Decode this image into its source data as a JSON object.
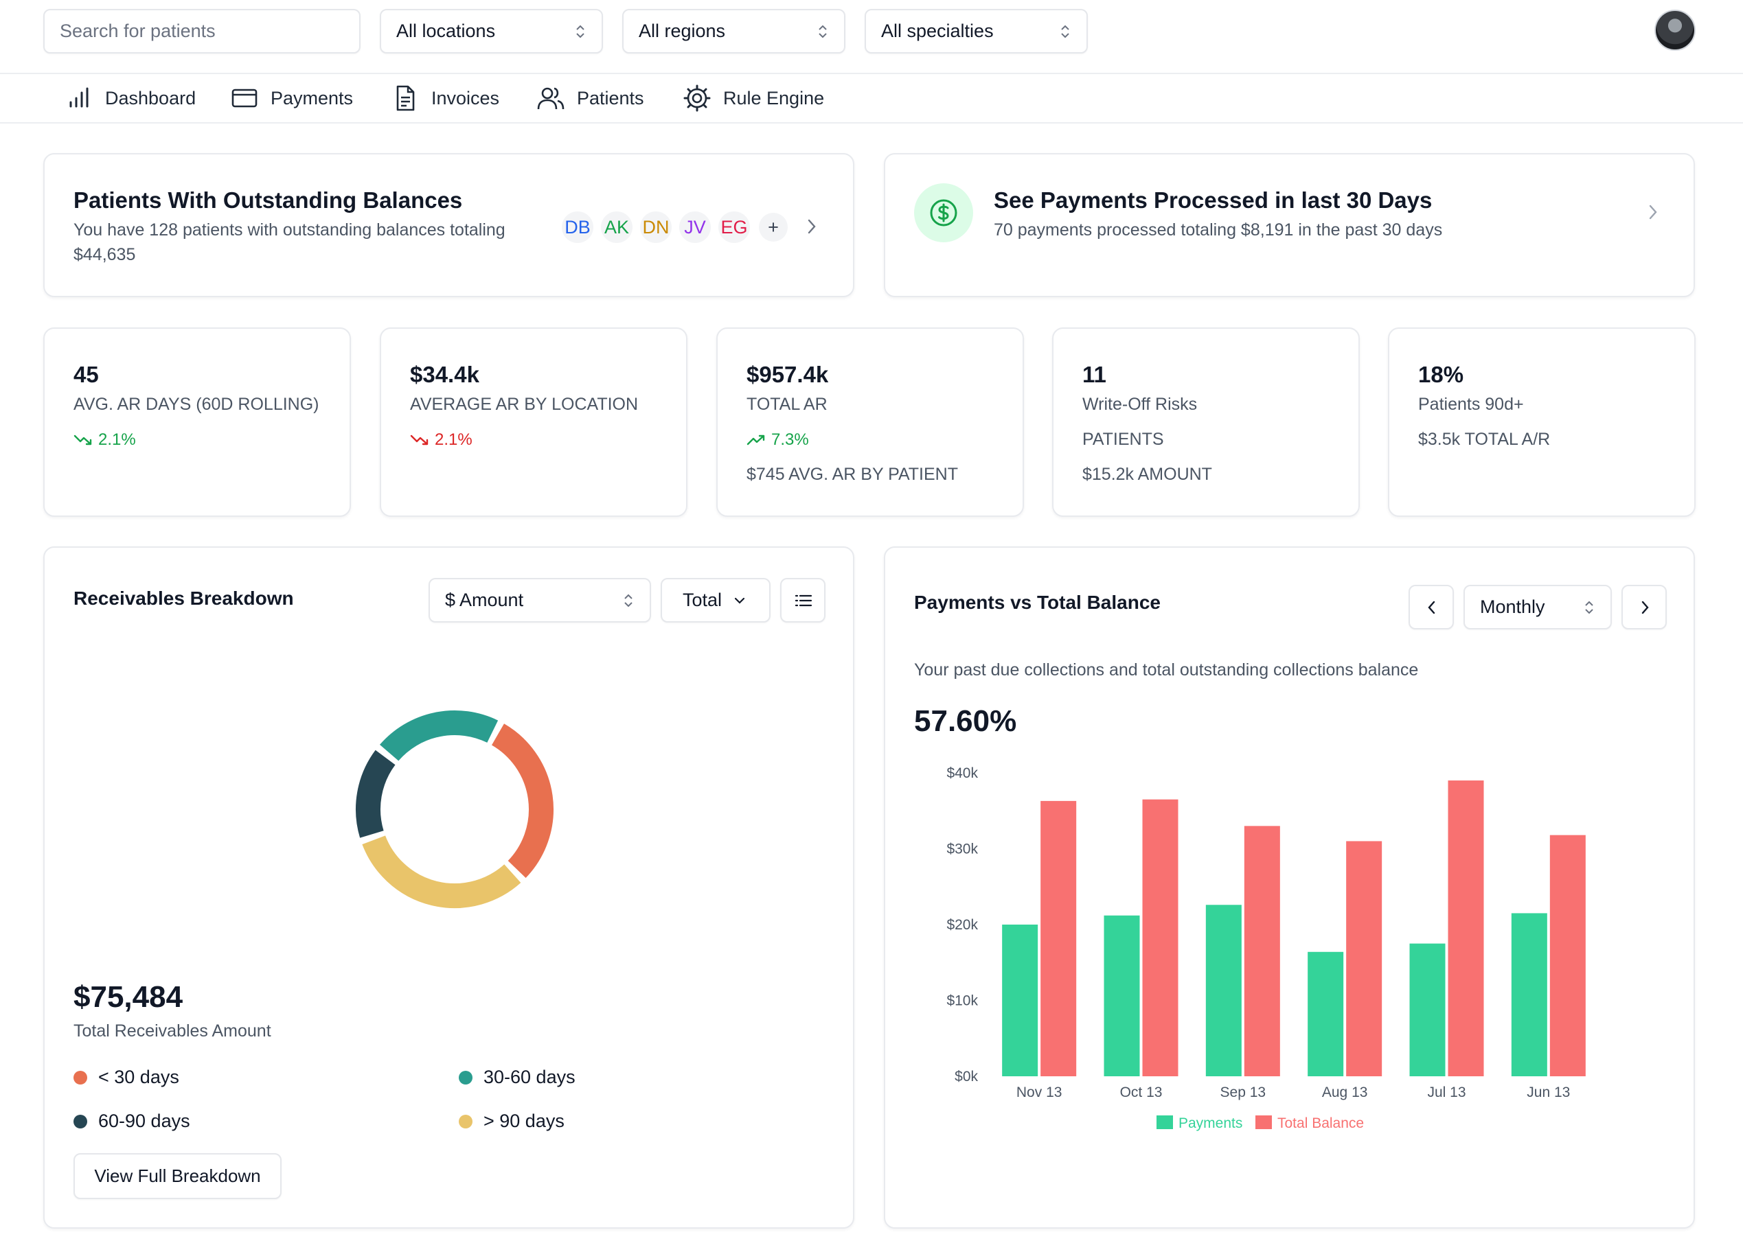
{
  "topbar": {
    "search_placeholder": "Search for patients",
    "locations": "All locations",
    "regions": "All regions",
    "specialties": "All specialties"
  },
  "nav": {
    "dashboard": "Dashboard",
    "payments": "Payments",
    "invoices": "Invoices",
    "patients": "Patients",
    "rule_engine": "Rule Engine"
  },
  "outstanding": {
    "title": "Patients With Outstanding Balances",
    "desc_line1": "You have 128 patients with outstanding balances totaling",
    "desc_line2": "$44,635",
    "chips": [
      {
        "initials": "DB",
        "color": "#2563eb"
      },
      {
        "initials": "AK",
        "color": "#16a34a"
      },
      {
        "initials": "DN",
        "color": "#ca8a04"
      },
      {
        "initials": "JV",
        "color": "#9333ea"
      },
      {
        "initials": "EG",
        "color": "#e11d48"
      }
    ],
    "more": "+"
  },
  "processed": {
    "title": "See Payments Processed in last 30 Days",
    "desc": "70 payments processed totaling $8,191 in the past 30 days"
  },
  "stats": [
    {
      "value": "45",
      "label": "AVG. AR DAYS (60D ROLLING)",
      "trend": "2.1%",
      "trend_dir": "down",
      "trend_color": "#16a34a"
    },
    {
      "value": "$34.4k",
      "label": "AVERAGE AR BY LOCATION",
      "trend": "2.1%",
      "trend_dir": "down",
      "trend_color": "#dc2626"
    },
    {
      "value": "$957.4k",
      "label": "TOTAL AR",
      "trend": "7.3%",
      "trend_dir": "up",
      "trend_color": "#16a34a",
      "extra": "$745 AVG. AR BY PATIENT"
    },
    {
      "value": "11",
      "label": "Write-Off Risks",
      "line2": "PATIENTS",
      "line3": "$15.2k AMOUNT"
    },
    {
      "value": "18%",
      "label": "Patients 90d+",
      "line2": "$3.5k TOTAL A/R"
    }
  ],
  "receivables": {
    "title": "Receivables Breakdown",
    "amount_select": "$ Amount",
    "total_select": "Total",
    "total_value": "$75,484",
    "total_label": "Total Receivables Amount",
    "legend": [
      {
        "label": "< 30 days",
        "color": "#e8704f"
      },
      {
        "label": "30-60 days",
        "color": "#2a9d8f"
      },
      {
        "label": "60-90 days",
        "color": "#264653"
      },
      {
        "label": "> 90 days",
        "color": "#e9c46a"
      }
    ],
    "donut": [
      {
        "label": "< 30 days",
        "value": 30,
        "color": "#e8704f"
      },
      {
        "label": "> 90 days",
        "value": 32,
        "color": "#e9c46a"
      },
      {
        "label": "60-90 days",
        "value": 16,
        "color": "#264653"
      },
      {
        "label": "30-60 days",
        "value": 22,
        "color": "#2a9d8f"
      }
    ],
    "button": "View Full Breakdown"
  },
  "payments_chart": {
    "title": "Payments vs Total Balance",
    "period": "Monthly",
    "subtitle": "Your past due collections and total outstanding collections balance",
    "percent": "57.60%"
  },
  "chart_data": {
    "type": "bar",
    "categories": [
      "Nov 13",
      "Oct 13",
      "Sep 13",
      "Aug 13",
      "Jul 13",
      "Jun 13"
    ],
    "series": [
      {
        "name": "Payments",
        "color": "#34d399",
        "values": [
          20000,
          21200,
          22600,
          16400,
          17500,
          21500
        ]
      },
      {
        "name": "Total Balance",
        "color": "#f87171",
        "values": [
          36300,
          36500,
          33000,
          31000,
          39000,
          31800
        ]
      }
    ],
    "yticks": [
      "$0k",
      "$10k",
      "$20k",
      "$30k",
      "$40k"
    ],
    "ylim": [
      0,
      40000
    ],
    "legend_position": "bottom"
  }
}
